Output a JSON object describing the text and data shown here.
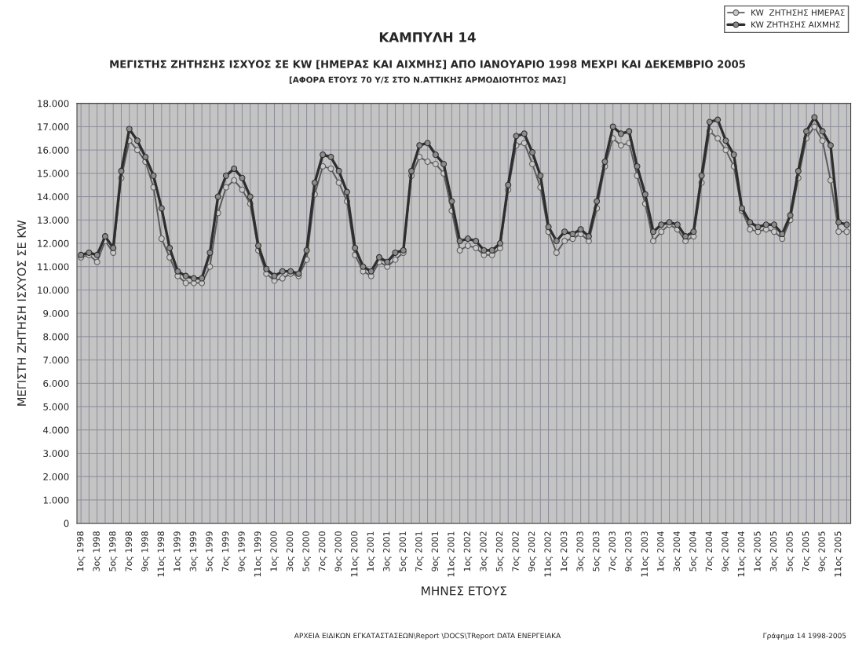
{
  "chart_data": {
    "type": "line",
    "title": "ΚΑΜΠΥΛΗ 14",
    "subtitle": "ΜΕΓΙΣΤΗΣ ΖΗΤΗΣΗΣ ΙΣΧΥΟΣ ΣΕ KW [ΗΜΕΡΑΣ ΚΑΙ ΑΙΧΜΗΣ] ΑΠΟ ΙΑΝΟΥΑΡΙΟ 1998 ΜΕΧΡΙ ΚΑΙ ΔΕΚΕΜΒΡΙΟ 2005\n[ΑΦΟΡΑ ΕΤΟΥΣ 70 Υ/Σ ΣΤΟ Ν.ΑΤΤΙΚΗΣ ΑΡΜΟΔΙΟΤΗΤΟΣ ΜΑΣ]",
    "xlabel": "ΜΗΝΕΣ ΕΤΟΥΣ",
    "ylabel": "ΜΕΓΙΣΤΗ ΖΗΤΗΣΗ ΙΣΧΥΟΣ ΣΕ KW",
    "annotations": [
      "ΑΡΧΕΙΑ ΕΙΔΙΚΩΝ ΕΓΚΑΤΑΣΤΑΣΕΩΝ\\Report \\DOCS\\TReport DATA ΕΝΕΡΓΕΙΑΚΑ",
      "Γράφημα 14 1998-2005"
    ],
    "categories": [
      "1ος 1998",
      null,
      "3ος 1998",
      null,
      "5ος 1998",
      null,
      "7ος 1998",
      null,
      "9ος 1998",
      null,
      "11ος 1998",
      null,
      "1ος 1999",
      null,
      "3ος 1999",
      null,
      "5ος 1999",
      null,
      "7ος 1999",
      null,
      "9ος 1999",
      null,
      "11ος 1999",
      null,
      "1ος 2000",
      null,
      "3ος 2000",
      null,
      "5ος 2000",
      null,
      "7ος 2000",
      null,
      "9ος 2000",
      null,
      "11ος 2000",
      null,
      "1ος 2001",
      null,
      "3ος 2001",
      null,
      "5ος 2001",
      null,
      "7ος 2001",
      null,
      "9ος 2001",
      null,
      "11ος 2001",
      null,
      "1ος 2002",
      null,
      "3ος 2002",
      null,
      "5ος 2002",
      null,
      "7ος 2002",
      null,
      "9ος 2002",
      null,
      "11ος 2002",
      null,
      "1ος 2003",
      null,
      "3ος 2003",
      null,
      "5ος 2003",
      null,
      "7ος 2003",
      null,
      "9ος 2003",
      null,
      "11ος 2003",
      null,
      "1ος 2004",
      null,
      "3ος 2004",
      null,
      "5ος 2004",
      null,
      "7ος 2004",
      null,
      "9ος 2004",
      null,
      "11ος 2004",
      null,
      "1ος 2005",
      null,
      "3ος 2005",
      null,
      "5ος 2005",
      null,
      "7ος 2005",
      null,
      "9ος 2005",
      null,
      "11ος 2005",
      null
    ],
    "series": [
      {
        "name": "KW  ΖΗΤΗΣΗΣ ΗΜΕΡΑΣ",
        "color": "#5a5a5a",
        "marker": "circle",
        "values": [
          11400,
          11500,
          11200,
          12100,
          11600,
          14800,
          16400,
          16000,
          15500,
          14400,
          12200,
          11400,
          10600,
          10300,
          10300,
          10300,
          11000,
          13300,
          14400,
          14700,
          14300,
          13700,
          11700,
          10700,
          10400,
          10500,
          10700,
          10600,
          11300,
          14100,
          15300,
          15200,
          14600,
          13800,
          11500,
          10800,
          10600,
          11200,
          11000,
          11300,
          11600,
          14900,
          15700,
          15500,
          15400,
          15000,
          13400,
          11700,
          11900,
          11800,
          11500,
          11500,
          11800,
          14300,
          16200,
          16300,
          15400,
          14400,
          12500,
          11600,
          12100,
          12200,
          12400,
          12100,
          13500,
          15300,
          16500,
          16200,
          16300,
          14900,
          13700,
          12100,
          12500,
          12800,
          12600,
          12100,
          12300,
          14600,
          16800,
          16500,
          16000,
          15300,
          13400,
          12600,
          12500,
          12600,
          12500,
          12200,
          13000,
          14800,
          16500,
          17000,
          16400,
          14700,
          12500,
          12500
        ]
      },
      {
        "name": "KW ΖΗΤΗΣΗΣ ΑΙΧΜΗΣ",
        "color": "#2e2e2e",
        "marker": "circle",
        "values": [
          11500,
          11600,
          11500,
          12300,
          11800,
          15100,
          16900,
          16400,
          15700,
          14900,
          13500,
          11800,
          10800,
          10600,
          10500,
          10500,
          11600,
          14000,
          14900,
          15200,
          14800,
          14000,
          11900,
          10900,
          10600,
          10800,
          10800,
          10700,
          11700,
          14600,
          15800,
          15700,
          15100,
          14200,
          11800,
          11000,
          10800,
          11400,
          11200,
          11600,
          11700,
          15100,
          16200,
          16300,
          15800,
          15400,
          13800,
          12100,
          12200,
          12100,
          11700,
          11700,
          12000,
          14500,
          16600,
          16700,
          15900,
          14900,
          12700,
          12100,
          12500,
          12400,
          12600,
          12300,
          13800,
          15500,
          17000,
          16700,
          16800,
          15300,
          14100,
          12500,
          12800,
          12900,
          12800,
          12300,
          12500,
          14900,
          17200,
          17300,
          16400,
          15800,
          13500,
          12900,
          12700,
          12800,
          12800,
          12400,
          13200,
          15100,
          16800,
          17400,
          16800,
          16200,
          12900,
          12800
        ]
      }
    ],
    "ylim": [
      0,
      18000
    ],
    "yticks": [
      {
        "value": 0,
        "label": "0"
      },
      {
        "value": 1000,
        "label": "1.000"
      },
      {
        "value": 2000,
        "label": "2.000"
      },
      {
        "value": 3000,
        "label": "3.000"
      },
      {
        "value": 4000,
        "label": "4.000"
      },
      {
        "value": 5000,
        "label": "5.000"
      },
      {
        "value": 6000,
        "label": "6.000"
      },
      {
        "value": 7000,
        "label": "7.000"
      },
      {
        "value": 8000,
        "label": "8.000"
      },
      {
        "value": 9000,
        "label": "9.000"
      },
      {
        "value": 10000,
        "label": "10.000"
      },
      {
        "value": 11000,
        "label": "11.000"
      },
      {
        "value": 12000,
        "label": "12.000"
      },
      {
        "value": 13000,
        "label": "13.000"
      },
      {
        "value": 14000,
        "label": "14.000"
      },
      {
        "value": 15000,
        "label": "15.000"
      },
      {
        "value": 16000,
        "label": "16.000"
      },
      {
        "value": 17000,
        "label": "17.000"
      },
      {
        "value": 18000,
        "label": "18.000"
      }
    ],
    "grid": true,
    "legend": "top right",
    "line_style": "solid"
  }
}
